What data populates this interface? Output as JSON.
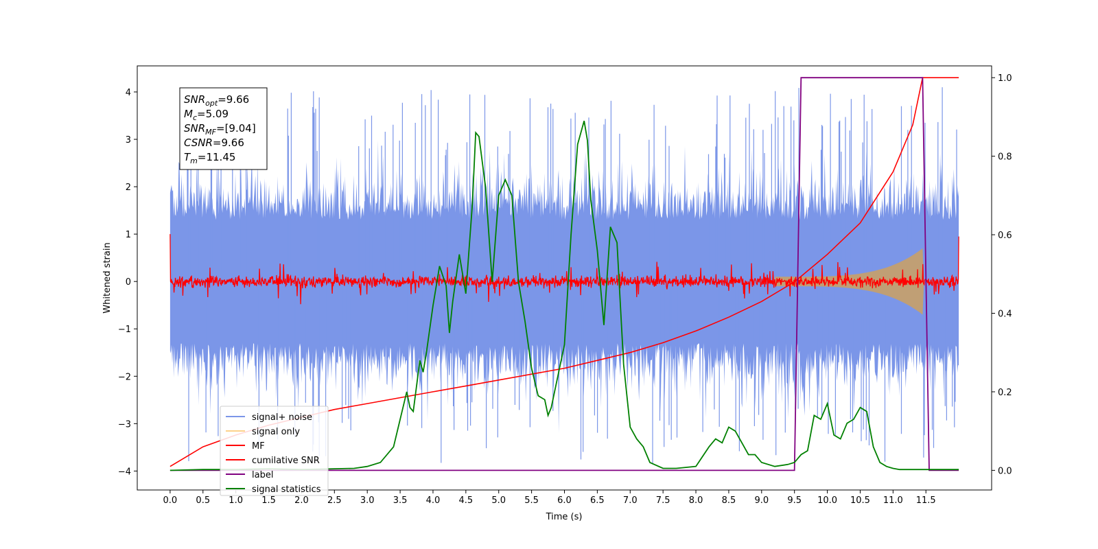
{
  "chart_data": {
    "type": "line",
    "xlabel": "Time (s)",
    "ylabel": "Whitened strain",
    "xlim": [
      -0.5,
      12.5
    ],
    "ylim": [
      -4.4,
      4.55
    ],
    "ylim_right": [
      -0.05,
      1.03
    ],
    "x_ticks": [
      0.0,
      0.5,
      1.0,
      1.5,
      2.0,
      2.5,
      3.0,
      3.5,
      4.0,
      4.5,
      5.0,
      5.5,
      6.0,
      6.5,
      7.0,
      7.5,
      8.0,
      8.5,
      9.0,
      9.5,
      10.0,
      10.5,
      11.0,
      11.5
    ],
    "x_tick_labels": [
      "0.0",
      "0.5",
      "1.0",
      "1.5",
      "2.0",
      "2.5",
      "3.0",
      "3.5",
      "4.0",
      "4.5",
      "5.0",
      "5.5",
      "6.0",
      "6.5",
      "7.0",
      "7.5",
      "8.0",
      "8.5",
      "9.0",
      "9.5",
      "10.0",
      "10.5",
      "11.0",
      "11.5"
    ],
    "y_ticks": [
      -4,
      -3,
      -2,
      -1,
      0,
      1,
      2,
      3,
      4
    ],
    "y_tick_labels": [
      "−4",
      "−3",
      "−2",
      "−1",
      "0",
      "1",
      "2",
      "3",
      "4"
    ],
    "y_right_ticks": [
      0.0,
      0.2,
      0.4,
      0.6,
      0.8,
      1.0
    ],
    "y_right_tick_labels": [
      "0.0",
      "0.2",
      "0.4",
      "0.6",
      "0.8",
      "1.0"
    ],
    "annotation": [
      {
        "base": "SNR",
        "sub": "opt",
        "value": "=9.66"
      },
      {
        "base": "M",
        "sub": "c",
        "value": "=5.09"
      },
      {
        "base": "SNR",
        "sub": "MF",
        "value": "=[9.04]"
      },
      {
        "base": "CSNR",
        "sub": "",
        "value": "=9.66"
      },
      {
        "base": "T",
        "sub": "m",
        "value": "=11.45"
      }
    ],
    "legend": {
      "placement": "lower-left",
      "entries": [
        {
          "label": "signal+ noise",
          "color": "#7b96e8"
        },
        {
          "label": "signal only",
          "color": "#fdd28a"
        },
        {
          "label": "MF",
          "color": "#ff0000"
        },
        {
          "label": "cumilative SNR",
          "color": "#ff0000"
        },
        {
          "label": "label",
          "color": "#800080"
        },
        {
          "label": "signal statistics",
          "color": "#008000"
        }
      ]
    },
    "series": [
      {
        "name": "signal+ noise",
        "axis": "left",
        "color": "#7b96e8",
        "x_range": [
          0.0,
          12.0
        ],
        "description_values": {
          "envelope_min": -3.9,
          "envelope_max": 4.15
        }
      },
      {
        "name": "signal only",
        "axis": "left",
        "color": "#fdd28a",
        "chirp": {
          "start": 9.2,
          "end": 11.45,
          "peak_amplitude": 0.7
        }
      },
      {
        "name": "MF",
        "axis": "left",
        "color": "#ff0000",
        "x_range": [
          0.0,
          12.0
        ],
        "noise_amplitude": 0.15,
        "edge_values": [
          1.0,
          0.95
        ]
      },
      {
        "name": "cumilative SNR",
        "axis": "right",
        "x": [
          0.0,
          0.5,
          1.0,
          1.5,
          2.0,
          2.5,
          3.0,
          3.5,
          4.0,
          4.5,
          5.0,
          5.5,
          6.0,
          6.5,
          7.0,
          7.5,
          8.0,
          8.5,
          9.0,
          9.5,
          10.0,
          10.5,
          11.0,
          11.3,
          11.45,
          12.0
        ],
        "y": [
          0.01,
          0.06,
          0.09,
          0.115,
          0.135,
          0.155,
          0.17,
          0.185,
          0.2,
          0.215,
          0.23,
          0.245,
          0.26,
          0.28,
          0.3,
          0.325,
          0.355,
          0.39,
          0.43,
          0.48,
          0.55,
          0.63,
          0.76,
          0.88,
          1.0,
          1.0
        ]
      },
      {
        "name": "label",
        "axis": "right",
        "x": [
          0.0,
          9.5,
          9.6,
          11.45,
          11.55,
          12.0
        ],
        "y": [
          0.0,
          0.0,
          1.0,
          1.0,
          0.0,
          0.0
        ]
      },
      {
        "name": "signal statistics",
        "axis": "right",
        "x": [
          0.0,
          0.5,
          1.0,
          1.5,
          2.0,
          2.5,
          2.8,
          3.0,
          3.2,
          3.4,
          3.5,
          3.6,
          3.65,
          3.7,
          3.8,
          3.85,
          3.9,
          4.0,
          4.1,
          4.2,
          4.25,
          4.3,
          4.4,
          4.5,
          4.6,
          4.65,
          4.7,
          4.8,
          4.9,
          5.0,
          5.1,
          5.2,
          5.3,
          5.4,
          5.5,
          5.6,
          5.7,
          5.75,
          5.8,
          5.9,
          6.0,
          6.1,
          6.2,
          6.3,
          6.35,
          6.4,
          6.5,
          6.6,
          6.7,
          6.8,
          6.9,
          7.0,
          7.1,
          7.2,
          7.3,
          7.5,
          7.7,
          8.0,
          8.2,
          8.3,
          8.4,
          8.5,
          8.6,
          8.7,
          8.8,
          8.9,
          9.0,
          9.2,
          9.4,
          9.5,
          9.6,
          9.7,
          9.8,
          9.9,
          10.0,
          10.1,
          10.2,
          10.3,
          10.4,
          10.5,
          10.6,
          10.7,
          10.8,
          10.9,
          11.0,
          11.1,
          11.2,
          11.3,
          11.4,
          11.5,
          11.6,
          11.7,
          11.8,
          11.9,
          12.0
        ],
        "y": [
          0.0,
          0.002,
          0.002,
          0.004,
          0.002,
          0.004,
          0.005,
          0.01,
          0.02,
          0.06,
          0.13,
          0.2,
          0.16,
          0.15,
          0.28,
          0.25,
          0.3,
          0.42,
          0.52,
          0.47,
          0.35,
          0.43,
          0.55,
          0.45,
          0.68,
          0.86,
          0.85,
          0.72,
          0.48,
          0.7,
          0.74,
          0.7,
          0.48,
          0.38,
          0.26,
          0.19,
          0.18,
          0.14,
          0.16,
          0.24,
          0.32,
          0.6,
          0.83,
          0.89,
          0.84,
          0.69,
          0.56,
          0.37,
          0.62,
          0.58,
          0.27,
          0.11,
          0.08,
          0.06,
          0.02,
          0.005,
          0.005,
          0.01,
          0.06,
          0.08,
          0.07,
          0.11,
          0.1,
          0.07,
          0.04,
          0.04,
          0.02,
          0.01,
          0.015,
          0.02,
          0.04,
          0.05,
          0.14,
          0.13,
          0.17,
          0.09,
          0.08,
          0.12,
          0.13,
          0.16,
          0.15,
          0.06,
          0.02,
          0.01,
          0.005,
          0.002,
          0.002,
          0.002,
          0.002,
          0.002,
          0.002,
          0.002,
          0.002,
          0.002,
          0.002
        ]
      }
    ]
  }
}
